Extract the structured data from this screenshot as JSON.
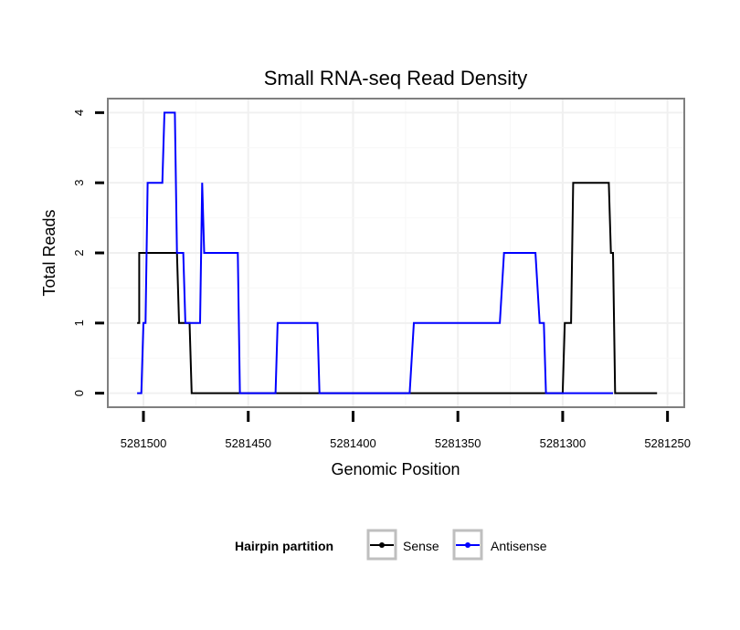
{
  "chart_data": {
    "type": "line",
    "title": "Small RNA-seq Read Density",
    "xlabel": "Genomic Position",
    "ylabel": "Total Reads",
    "x_reversed": true,
    "xlim": [
      5281517,
      5281242
    ],
    "ylim": [
      -0.2,
      4.2
    ],
    "xticks": [
      5281500,
      5281450,
      5281400,
      5281350,
      5281300,
      5281250
    ],
    "xtick_labels": [
      "5281500",
      "5281450",
      "5281400",
      "5281350",
      "5281300",
      "5281250"
    ],
    "yticks": [
      0,
      1,
      2,
      3,
      4
    ],
    "ytick_labels": [
      "0",
      "1",
      "2",
      "3",
      "4"
    ],
    "grid": true,
    "legend": {
      "title": "Hairpin partition",
      "position": "bottom"
    },
    "series": [
      {
        "name": "Sense",
        "color": "#000000",
        "points": [
          [
            5281503,
            1
          ],
          [
            5281502,
            1
          ],
          [
            5281502,
            2
          ],
          [
            5281484,
            2
          ],
          [
            5281483,
            1
          ],
          [
            5281478,
            1
          ],
          [
            5281477,
            0
          ],
          [
            5281475,
            0
          ],
          [
            5281300,
            0
          ],
          [
            5281299,
            1
          ],
          [
            5281296,
            1
          ],
          [
            5281295,
            3
          ],
          [
            5281278,
            3
          ],
          [
            5281277,
            2
          ],
          [
            5281276,
            2
          ],
          [
            5281275,
            0
          ],
          [
            5281255,
            0
          ]
        ]
      },
      {
        "name": "Antisense",
        "color": "#0000ff",
        "points": [
          [
            5281503,
            0
          ],
          [
            5281501,
            0
          ],
          [
            5281500,
            1
          ],
          [
            5281499,
            1
          ],
          [
            5281498,
            3
          ],
          [
            5281491,
            3
          ],
          [
            5281490,
            4
          ],
          [
            5281485,
            4
          ],
          [
            5281484,
            2
          ],
          [
            5281481,
            2
          ],
          [
            5281480,
            1
          ],
          [
            5281473,
            1
          ],
          [
            5281472,
            3
          ],
          [
            5281471,
            2
          ],
          [
            5281455,
            2
          ],
          [
            5281454,
            0
          ],
          [
            5281437,
            0
          ],
          [
            5281436,
            1
          ],
          [
            5281417,
            1
          ],
          [
            5281416,
            0
          ],
          [
            5281373,
            0
          ],
          [
            5281371,
            1
          ],
          [
            5281330,
            1
          ],
          [
            5281328,
            2
          ],
          [
            5281313,
            2
          ],
          [
            5281311,
            1
          ],
          [
            5281309,
            1
          ],
          [
            5281308,
            0
          ],
          [
            5281278,
            0
          ],
          [
            5281276,
            0
          ]
        ]
      }
    ]
  }
}
